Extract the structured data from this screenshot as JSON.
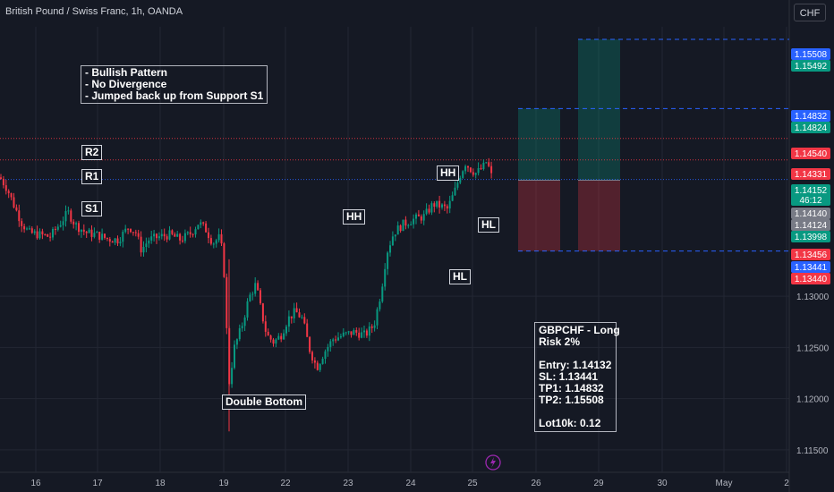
{
  "header": {
    "title": "British Pound / Swiss Franc, 1h, OANDA",
    "currency_button": "CHF"
  },
  "chart_data": {
    "type": "candlestick",
    "symbol": "GBPCHF",
    "timeframe": "1h",
    "x_tick_labels": [
      "16",
      "17",
      "18",
      "19",
      "22",
      "23",
      "24",
      "25",
      "26",
      "29",
      "30",
      "May",
      "2"
    ],
    "y_tick_labels": [
      "1.13000",
      "1.12500",
      "1.12000",
      "1.11500"
    ],
    "ylim": [
      1.1128,
      1.1563
    ],
    "grid": true,
    "price_path": [
      [
        0,
        1.1416
      ],
      [
        8,
        1.1405
      ],
      [
        16,
        1.1388
      ],
      [
        24,
        1.1372
      ],
      [
        32,
        1.1362
      ],
      [
        44,
        1.136
      ],
      [
        56,
        1.1358
      ],
      [
        68,
        1.1372
      ],
      [
        76,
        1.1382
      ],
      [
        84,
        1.137
      ],
      [
        96,
        1.1362
      ],
      [
        108,
        1.136
      ],
      [
        120,
        1.1356
      ],
      [
        132,
        1.1355
      ],
      [
        144,
        1.1368
      ],
      [
        152,
        1.1362
      ],
      [
        158,
        1.1345
      ],
      [
        166,
        1.1355
      ],
      [
        178,
        1.1358
      ],
      [
        190,
        1.136
      ],
      [
        202,
        1.1355
      ],
      [
        214,
        1.1362
      ],
      [
        222,
        1.1372
      ],
      [
        230,
        1.1365
      ],
      [
        238,
        1.1352
      ],
      [
        246,
        1.1358
      ],
      [
        250,
        1.133
      ],
      [
        256,
        1.1215
      ],
      [
        262,
        1.125
      ],
      [
        270,
        1.127
      ],
      [
        278,
        1.1298
      ],
      [
        286,
        1.1312
      ],
      [
        292,
        1.1285
      ],
      [
        298,
        1.1262
      ],
      [
        306,
        1.1255
      ],
      [
        314,
        1.1262
      ],
      [
        322,
        1.1278
      ],
      [
        330,
        1.1285
      ],
      [
        338,
        1.1278
      ],
      [
        346,
        1.1248
      ],
      [
        354,
        1.123
      ],
      [
        362,
        1.1245
      ],
      [
        372,
        1.1258
      ],
      [
        384,
        1.1262
      ],
      [
        396,
        1.1265
      ],
      [
        408,
        1.1262
      ],
      [
        418,
        1.1272
      ],
      [
        426,
        1.1305
      ],
      [
        432,
        1.1342
      ],
      [
        440,
        1.1362
      ],
      [
        450,
        1.137
      ],
      [
        462,
        1.1375
      ],
      [
        474,
        1.1378
      ],
      [
        484,
        1.139
      ],
      [
        492,
        1.1388
      ],
      [
        500,
        1.1385
      ],
      [
        508,
        1.1402
      ],
      [
        514,
        1.1418
      ],
      [
        520,
        1.143
      ],
      [
        526,
        1.1424
      ],
      [
        532,
        1.142
      ],
      [
        540,
        1.1426
      ],
      [
        544,
        1.1432
      ],
      [
        550,
        1.1415
      ]
    ],
    "levels": [
      {
        "label": "R2",
        "value": 1.1454,
        "color": "#f23645",
        "style": "dotted"
      },
      {
        "label": "R1",
        "value": 1.14331,
        "color": "#f23645",
        "style": "dotted"
      },
      {
        "label": "S1",
        "value": 1.1414,
        "color": "#2962ff",
        "style": "dotted"
      }
    ],
    "positions": [
      {
        "from_day": "26",
        "to_day": "26",
        "entry": 1.14132,
        "stop": 1.13441,
        "target": 1.14832
      },
      {
        "from_day": "29",
        "to_day": "29",
        "entry": 1.14132,
        "stop": 1.13441,
        "target": 1.15508
      }
    ],
    "price_tags": [
      {
        "text": "1.15508",
        "value": 1.15508,
        "color": "#2962ff"
      },
      {
        "text": "1.15492",
        "value": 1.15492,
        "color": "#089981"
      },
      {
        "text": "1.14832",
        "value": 1.14832,
        "color": "#2962ff"
      },
      {
        "text": "1.14824",
        "value": 1.14824,
        "color": "#089981"
      },
      {
        "text": "1.14540",
        "value": 1.1454,
        "color": "#f23645"
      },
      {
        "text": "1.14331",
        "value": 1.14331,
        "color": "#f23645"
      },
      {
        "text": "1.14152",
        "subtext": "46:12",
        "value": 1.14152,
        "color": "#089981"
      },
      {
        "text": "1.14140",
        "value": 1.1414,
        "color": "#787b86"
      },
      {
        "text": "1.14124",
        "value": 1.14124,
        "color": "#787b86"
      },
      {
        "text": "1.13998",
        "value": 1.13998,
        "color": "#089981"
      },
      {
        "text": "1.13456",
        "value": 1.13456,
        "color": "#f23645"
      },
      {
        "text": "1.13441",
        "value": 1.13441,
        "color": "#2962ff"
      },
      {
        "text": "1.13440",
        "value": 1.1344,
        "color": "#f23645"
      }
    ],
    "colors": {
      "up": "#089981",
      "down": "#f23645",
      "background": "#151924",
      "grid": "#232733"
    }
  },
  "annotations": {
    "notes": [
      "- Bullish Pattern",
      "- No Divergence",
      "- Jumped back up from Support S1"
    ],
    "level_labels": {
      "r2": "R2",
      "r1": "R1",
      "s1": "S1"
    },
    "swing_labels": {
      "hh_left": "HH",
      "hh_right": "HH",
      "hl_upper": "HL",
      "hl_lower": "HL"
    },
    "double_bottom": "Double Bottom",
    "trade_plan": [
      "GBPCHF - Long",
      "Risk 2%",
      "",
      "Entry: 1.14132",
      "SL: 1.13441",
      "TP1: 1.14832",
      "TP2: 1.15508",
      "",
      "Lot10k: 0.12"
    ]
  },
  "footer": {
    "lightning_icon": "lightning-icon"
  }
}
